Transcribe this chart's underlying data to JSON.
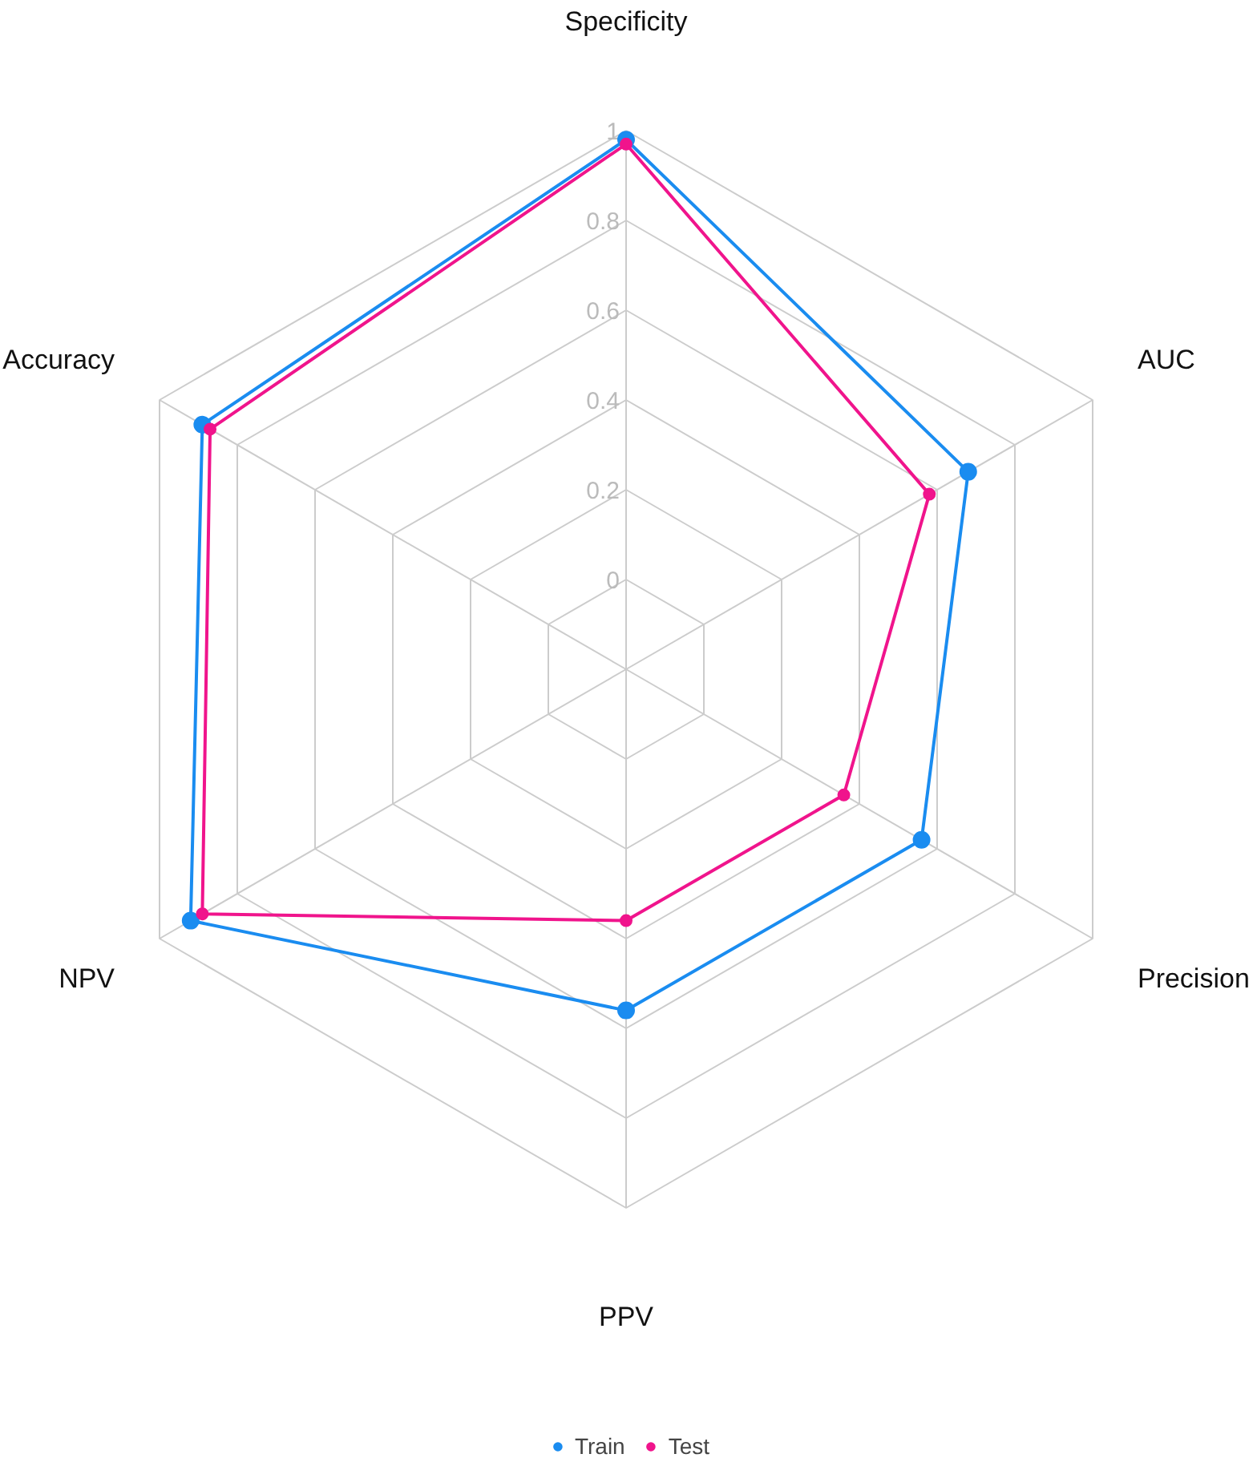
{
  "chart_data": {
    "type": "radar",
    "categories": [
      "Specificity",
      "AUC",
      "Precision",
      "PPV",
      "NPV",
      "Accuracy"
    ],
    "ylim": [
      -0.2,
      1
    ],
    "yticks": [
      0,
      0.2,
      0.4,
      0.6,
      0.8,
      1
    ],
    "grid": true,
    "legend": "bottom",
    "marker": "circle",
    "line_style": "solid",
    "series": [
      {
        "name": "Train",
        "color": "#1a8cf0",
        "values": [
          0.98,
          0.68,
          0.56,
          0.56,
          0.92,
          0.89
        ]
      },
      {
        "name": "Test",
        "color": "#f0148c",
        "values": [
          0.97,
          0.58,
          0.36,
          0.36,
          0.89,
          0.87
        ]
      }
    ]
  }
}
